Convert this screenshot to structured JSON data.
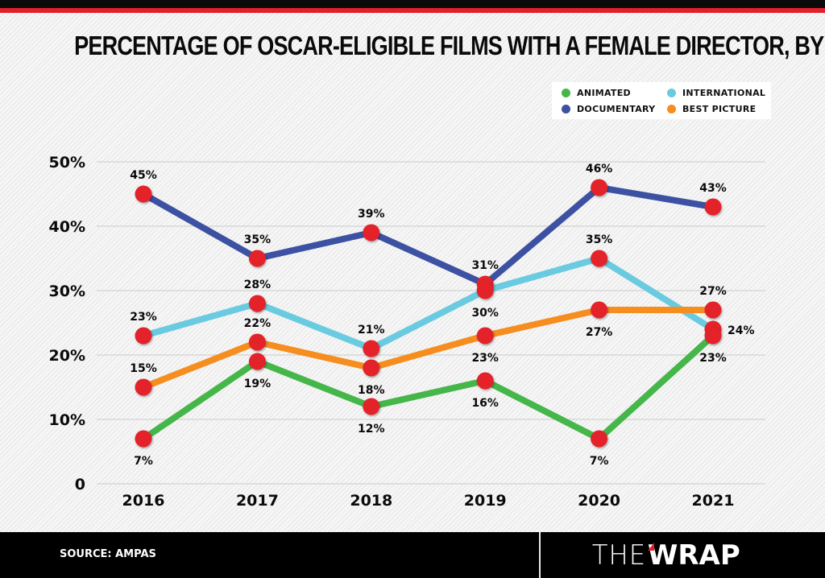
{
  "header": {
    "title": "PERCENTAGE OF OSCAR-ELIGIBLE FILMS WITH A FEMALE DIRECTOR, BY CATEGORY"
  },
  "legend": {
    "items": [
      {
        "label": "ANIMATED",
        "color": "#45b649"
      },
      {
        "label": "INTERNATIONAL",
        "color": "#6acbe0"
      },
      {
        "label": "DOCUMENTARY",
        "color": "#3d51a3"
      },
      {
        "label": "BEST PICTURE",
        "color": "#f58d1f"
      }
    ]
  },
  "footer": {
    "source": "SOURCE: AMPAS",
    "logo_light": "THE",
    "logo_bold": "WRAP"
  },
  "colors": {
    "marker": "#e3202a",
    "gridline": "#d2d2d2",
    "brand_red": "#e3202a"
  },
  "chart_data": {
    "type": "line",
    "title": "PERCENTAGE OF OSCAR-ELIGIBLE FILMS WITH A FEMALE DIRECTOR, BY CATEGORY",
    "xlabel": "",
    "ylabel": "",
    "x": [
      "2016",
      "2017",
      "2018",
      "2019",
      "2020",
      "2021"
    ],
    "ylim": [
      0,
      50
    ],
    "yticks": [
      0,
      10,
      20,
      30,
      40,
      50
    ],
    "ytick_labels": [
      "0",
      "10%",
      "20%",
      "30%",
      "40%",
      "50%"
    ],
    "grid": true,
    "legend_position": "top-right",
    "series": [
      {
        "name": "DOCUMENTARY",
        "color": "#3d51a3",
        "values": [
          45,
          35,
          39,
          31,
          46,
          43
        ],
        "labels": [
          "45%",
          "35%",
          "39%",
          "31%",
          "46%",
          "43%"
        ],
        "label_pos": [
          "above",
          "above",
          "above",
          "above",
          "above",
          "above"
        ]
      },
      {
        "name": "INTERNATIONAL",
        "color": "#6acbe0",
        "values": [
          23,
          28,
          21,
          30,
          35,
          24
        ],
        "labels": [
          "23%",
          "28%",
          "21%",
          "30%",
          "35%",
          "24%"
        ],
        "label_pos": [
          "above",
          "above",
          "above",
          "below",
          "above",
          "right"
        ]
      },
      {
        "name": "BEST PICTURE",
        "color": "#f58d1f",
        "values": [
          15,
          22,
          18,
          23,
          27,
          27
        ],
        "labels": [
          "15%",
          "22%",
          "18%",
          "23%",
          "27%",
          "27%"
        ],
        "label_pos": [
          "above",
          "above",
          "below",
          "below",
          "below",
          "above"
        ]
      },
      {
        "name": "ANIMATED",
        "color": "#45b649",
        "values": [
          7,
          19,
          12,
          16,
          7,
          23
        ],
        "labels": [
          "7%",
          "19%",
          "12%",
          "16%",
          "7%",
          "23%"
        ],
        "label_pos": [
          "below",
          "below",
          "below",
          "below",
          "below",
          "below"
        ]
      }
    ]
  }
}
